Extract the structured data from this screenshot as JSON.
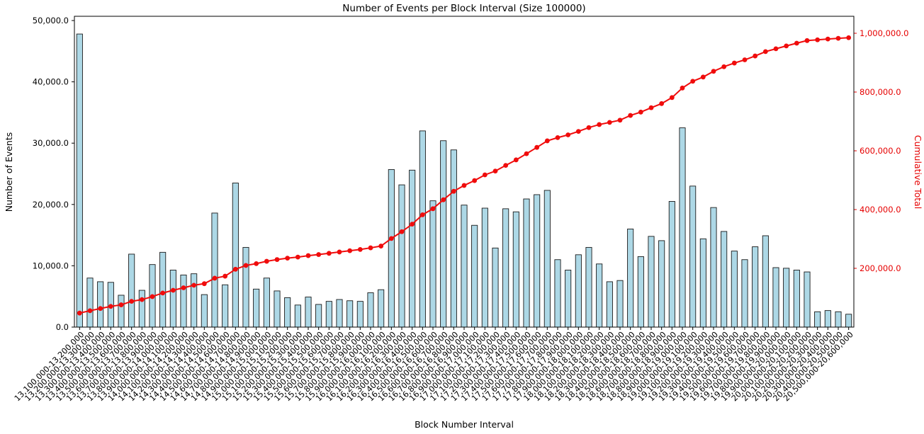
{
  "chart_data": {
    "type": "bar",
    "title": "Number of Events per Block Interval (Size 100000)",
    "xlabel": "Block Number Interval",
    "ylabel_left": "Number of Events",
    "ylabel_right": "Cumulative Total",
    "grid": false,
    "legend": "none",
    "bar_color": "#ADD8E6",
    "bar_edge_color": "#1a1a1a",
    "line_color": "#F00C0C",
    "left_axis": {
      "min": 0,
      "max": 50000,
      "tick_values": [
        0,
        10000,
        20000,
        30000,
        40000,
        50000
      ],
      "tick_labels": [
        "0.0",
        "10,000.0",
        "20,000.0",
        "30,000.0",
        "40,000.0",
        "50,000.0"
      ]
    },
    "right_axis": {
      "min": 0,
      "max": 1000000,
      "color": "#e60000",
      "tick_values": [
        200000,
        400000,
        600000,
        800000,
        1000000
      ],
      "tick_labels": [
        "200,000.0",
        "400,000.0",
        "600,000.0",
        "800,000.0",
        "1,000,000.0"
      ]
    },
    "categories": [
      "13,100,000-13,200,000",
      "13,200,000-13,300,000",
      "13,300,000-13,400,000",
      "13,400,000-13,500,000",
      "13,500,000-13,600,000",
      "13,600,000-13,700,000",
      "13,700,000-13,800,000",
      "13,800,000-13,900,000",
      "13,900,000-14,000,000",
      "14,000,000-14,100,000",
      "14,100,000-14,200,000",
      "14,200,000-14,300,000",
      "14,300,000-14,400,000",
      "14,400,000-14,500,000",
      "14,500,000-14,600,000",
      "14,600,000-14,700,000",
      "14,700,000-14,800,000",
      "14,800,000-14,900,000",
      "14,900,000-15,000,000",
      "15,000,000-15,100,000",
      "15,100,000-15,200,000",
      "15,200,000-15,300,000",
      "15,300,000-15,400,000",
      "15,400,000-15,500,000",
      "15,500,000-15,600,000",
      "15,600,000-15,700,000",
      "15,700,000-15,800,000",
      "15,800,000-15,900,000",
      "15,900,000-16,000,000",
      "16,000,000-16,100,000",
      "16,100,000-16,200,000",
      "16,200,000-16,300,000",
      "16,300,000-16,400,000",
      "16,400,000-16,500,000",
      "16,500,000-16,600,000",
      "16,600,000-16,700,000",
      "16,700,000-16,800,000",
      "16,800,000-16,900,000",
      "16,900,000-17,000,000",
      "17,000,000-17,100,000",
      "17,100,000-17,200,000",
      "17,200,000-17,300,000",
      "17,300,000-17,400,000",
      "17,400,000-17,500,000",
      "17,500,000-17,600,000",
      "17,600,000-17,700,000",
      "17,700,000-17,800,000",
      "17,800,000-17,900,000",
      "17,900,000-18,000,000",
      "18,000,000-18,100,000",
      "18,100,000-18,200,000",
      "18,200,000-18,300,000",
      "18,300,000-18,400,000",
      "18,400,000-18,500,000",
      "18,500,000-18,600,000",
      "18,600,000-18,700,000",
      "18,700,000-18,800,000",
      "18,800,000-18,900,000",
      "18,900,000-19,000,000",
      "19,000,000-19,100,000",
      "19,100,000-19,200,000",
      "19,200,000-19,300,000",
      "19,300,000-19,400,000",
      "19,400,000-19,500,000",
      "19,500,000-19,600,000",
      "19,600,000-19,700,000",
      "19,700,000-19,800,000",
      "19,800,000-19,900,000",
      "19,900,000-20,000,000",
      "20,000,000-20,100,000",
      "20,100,000-20,200,000",
      "20,200,000-20,300,000",
      "20,300,000-20,400,000",
      "20,400,000-20,500,000",
      "20,500,000-20,600,000"
    ],
    "series": [
      {
        "name": "Number of Events",
        "type": "bar",
        "axis": "left",
        "values": [
          47800,
          8000,
          7400,
          7300,
          5200,
          11900,
          6000,
          10200,
          12200,
          9300,
          8500,
          8700,
          5300,
          18600,
          6900,
          23500,
          13000,
          6200,
          8000,
          5900,
          4800,
          3600,
          4900,
          3700,
          4200,
          4500,
          4300,
          4200,
          5600,
          6100,
          25700,
          23200,
          25600,
          32000,
          20600,
          30400,
          28900,
          19900,
          16600,
          19400,
          12900,
          19300,
          18800,
          20900,
          21600,
          22300,
          11000,
          9300,
          11800,
          13000,
          10300,
          7400,
          7600,
          16000,
          11500,
          14800,
          14100,
          20500,
          32500,
          23000,
          14400,
          19500,
          15600,
          12400,
          11000,
          13100,
          14900,
          9700,
          9600,
          9300,
          9000,
          2500,
          2700,
          2500,
          2100
        ]
      },
      {
        "name": "Cumulative Total",
        "type": "line",
        "axis": "right",
        "derivation": "running_sum_of_bar_values"
      }
    ]
  }
}
